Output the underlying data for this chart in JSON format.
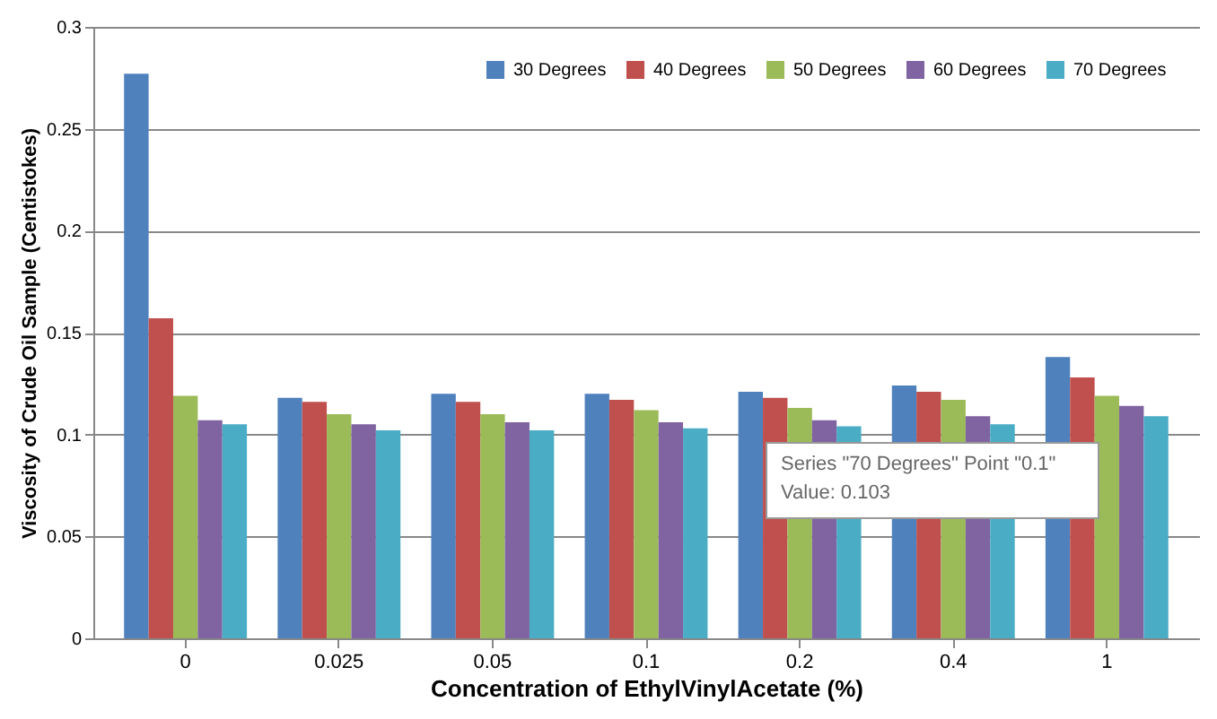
{
  "chart_data": {
    "type": "bar",
    "xlabel": "Concentration of  EthylVinylAcetate (%)",
    "ylabel": "Viscosity of Crude Oil Sample (Centistokes)",
    "categories": [
      "0",
      "0.025",
      "0.05",
      "0.1",
      "0.2",
      "0.4",
      "1"
    ],
    "series": [
      {
        "name": "30 Degrees",
        "color": "#4f81bd",
        "values": [
          0.277,
          0.118,
          0.12,
          0.12,
          0.121,
          0.124,
          0.138
        ]
      },
      {
        "name": "40 Degrees",
        "color": "#c0504d",
        "values": [
          0.157,
          0.116,
          0.116,
          0.117,
          0.118,
          0.121,
          0.128
        ]
      },
      {
        "name": "50 Degrees",
        "color": "#9bbb59",
        "values": [
          0.119,
          0.11,
          0.11,
          0.112,
          0.113,
          0.117,
          0.119
        ]
      },
      {
        "name": "60 Degrees",
        "color": "#8064a2",
        "values": [
          0.107,
          0.105,
          0.106,
          0.106,
          0.107,
          0.109,
          0.114
        ]
      },
      {
        "name": "70 Degrees",
        "color": "#4bacc6",
        "values": [
          0.105,
          0.102,
          0.102,
          0.103,
          0.104,
          0.105,
          0.109
        ]
      }
    ],
    "ylim": [
      0,
      0.3
    ],
    "yticks": [
      0,
      0.05,
      0.1,
      0.15,
      0.2,
      0.25,
      0.3
    ],
    "grid": "y",
    "legend": "top right",
    "annotations": [
      "Series \"70 Degrees\" Point \"0.1\"",
      "Value: 0.103"
    ]
  }
}
